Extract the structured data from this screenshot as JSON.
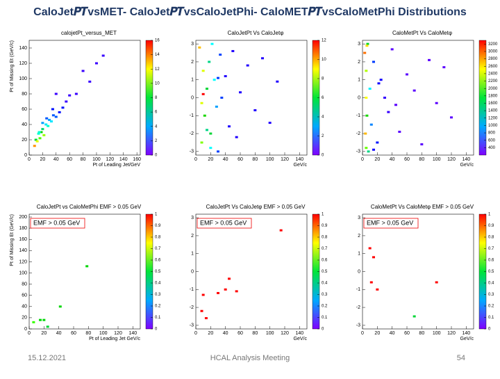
{
  "title": "CaloJet𝑷𝑻vsMET- CaloJet𝑷𝑻vsCaloJetPhi- CaloMET𝑷𝑻vsCaloMetPhi Distributions",
  "footer": {
    "date": "15.12.2021",
    "event": "HCAL Analysis Meeting",
    "page": "54"
  },
  "chart_data": [
    {
      "type": "hist2d",
      "title": "calojetPt_versus_MET",
      "xlabel": "Pt of Leading Jet/GeV",
      "ylabel": "Pt of Missing Et (GeV/c)",
      "x": [
        8,
        10,
        12,
        14,
        16,
        18,
        20,
        22,
        25,
        28,
        30,
        33,
        36,
        40,
        45,
        50,
        55,
        60,
        70,
        80,
        90,
        100,
        110,
        40,
        35,
        26,
        20,
        15
      ],
      "y": [
        12,
        20,
        18,
        28,
        22,
        30,
        34,
        26,
        40,
        38,
        46,
        44,
        52,
        50,
        56,
        62,
        70,
        78,
        80,
        110,
        96,
        120,
        130,
        80,
        60,
        48,
        42,
        30
      ],
      "z": [
        14,
        8,
        12,
        6,
        10,
        9,
        7,
        11,
        5,
        6,
        4,
        5,
        3,
        3,
        2,
        2,
        1,
        1,
        1,
        1,
        1,
        1,
        1,
        1,
        2,
        3,
        4,
        6
      ],
      "xlim": [
        0,
        165
      ],
      "ylim": [
        0,
        150
      ],
      "xticks": [
        0,
        20,
        40,
        60,
        80,
        100,
        120,
        140,
        160
      ],
      "yticks": [
        0,
        20,
        40,
        60,
        80,
        100,
        120,
        140
      ],
      "zlim": [
        0,
        16
      ],
      "zticks": [
        0,
        2,
        4,
        6,
        8,
        10,
        12,
        14,
        16
      ]
    },
    {
      "type": "hist2d",
      "title": "CaloJetPt Vs CaloJetφ",
      "xlabel": "GeV/c",
      "x": [
        5,
        8,
        10,
        12,
        15,
        18,
        20,
        22,
        25,
        28,
        30,
        33,
        35,
        40,
        45,
        50,
        55,
        60,
        70,
        80,
        90,
        100,
        110,
        20,
        15,
        10,
        30,
        8
      ],
      "y": [
        2.8,
        -2.5,
        1.5,
        -1,
        0.5,
        2,
        -2,
        3,
        1,
        -0.5,
        -3,
        2.4,
        0,
        1.2,
        -1.6,
        2.6,
        -2.2,
        0.3,
        1.8,
        -0.7,
        2.2,
        -1.4,
        0.9,
        -2.8,
        -1.8,
        0.2,
        1.1,
        -0.3
      ],
      "z": [
        10,
        8,
        9,
        7,
        6,
        5,
        6,
        4,
        4,
        3,
        2,
        2,
        2,
        1,
        1,
        1,
        1,
        1,
        1,
        1,
        1,
        1,
        1,
        4,
        5,
        12,
        2,
        9
      ],
      "xlim": [
        0,
        150
      ],
      "ylim": [
        -3.2,
        3.2
      ],
      "xticks": [
        0,
        20,
        40,
        60,
        80,
        100,
        120,
        140
      ],
      "yticks": [
        -3,
        -2,
        -1,
        0,
        1,
        2,
        3
      ],
      "zlim": [
        0,
        12
      ],
      "zticks": [
        0,
        2,
        4,
        6,
        8,
        10,
        12
      ]
    },
    {
      "type": "hist2d",
      "title": "CaloMetPt Vs CaloMetφ",
      "xlabel": "GeV/c",
      "x": [
        3,
        4,
        5,
        5,
        6,
        7,
        8,
        10,
        12,
        15,
        20,
        25,
        30,
        35,
        40,
        50,
        60,
        70,
        80,
        90,
        100,
        110,
        120,
        15,
        22,
        45,
        5,
        6
      ],
      "y": [
        2.5,
        -2,
        0,
        1.5,
        -1,
        3,
        -3,
        0.5,
        -1.5,
        2,
        -2.5,
        1,
        0,
        -0.8,
        2.7,
        -1.9,
        1.3,
        0.4,
        -2.6,
        2.1,
        -0.3,
        1.7,
        -1.1,
        -2.9,
        0.8,
        -0.4,
        -2.8,
        2.9
      ],
      "z": [
        3000,
        2800,
        2600,
        2400,
        2000,
        1800,
        1500,
        1200,
        900,
        700,
        600,
        500,
        400,
        400,
        300,
        300,
        300,
        300,
        300,
        300,
        300,
        300,
        300,
        500,
        500,
        300,
        2200,
        2700
      ],
      "xlim": [
        0,
        150
      ],
      "ylim": [
        -3.2,
        3.2
      ],
      "xticks": [
        0,
        20,
        40,
        60,
        80,
        100,
        120,
        140
      ],
      "yticks": [
        -3,
        -2,
        -1,
        0,
        1,
        2,
        3
      ],
      "zlim": [
        200,
        3300
      ],
      "zticks": [
        400,
        600,
        800,
        1000,
        1200,
        1400,
        1600,
        1800,
        2000,
        2200,
        2400,
        2600,
        2800,
        3000,
        3200
      ]
    },
    {
      "type": "hist2d",
      "title": "CaloJetPt vs CaloMetPhi EMF > 0.05 GeV",
      "note": "EMF > 0.05 GeV",
      "xlabel": "Pt of Leading Jet GeV/c",
      "ylabel": "Pt of Missing Et (GeV/c)",
      "x": [
        6,
        15,
        20,
        25,
        42,
        78
      ],
      "y": [
        12,
        16,
        16,
        4,
        40,
        112
      ],
      "z": [
        0.6,
        0.55,
        0.55,
        0.5,
        0.55,
        0.55
      ],
      "xlim": [
        0,
        150
      ],
      "ylim": [
        0,
        205
      ],
      "xticks": [
        0,
        20,
        40,
        60,
        80,
        100,
        120,
        140
      ],
      "yticks": [
        0,
        20,
        40,
        60,
        80,
        100,
        120,
        140,
        160,
        180,
        200
      ],
      "zlim": [
        0,
        1
      ],
      "zticks": [
        0,
        0.1,
        0.2,
        0.3,
        0.4,
        0.5,
        0.6,
        0.7,
        0.8,
        0.9,
        1
      ]
    },
    {
      "type": "hist2d",
      "title": "CaloJetPt Vs CaloJetφ EMF > 0.05 GeV",
      "note": "EMF > 0.05 GeV",
      "xlabel": "GeV/c",
      "x": [
        8,
        10,
        14,
        30,
        40,
        45,
        55,
        115
      ],
      "y": [
        -2.2,
        -1.3,
        -2.6,
        -1.2,
        -1.0,
        -0.4,
        -1.1,
        2.3
      ],
      "z": [
        1,
        1,
        1,
        1,
        1,
        1,
        1,
        1
      ],
      "xlim": [
        0,
        150
      ],
      "ylim": [
        -3.2,
        3.2
      ],
      "xticks": [
        0,
        20,
        40,
        60,
        80,
        100,
        120,
        140
      ],
      "yticks": [
        -3,
        -2,
        -1,
        0,
        1,
        2,
        3
      ],
      "zlim": [
        0,
        1
      ],
      "zticks": [
        0,
        0.1,
        0.2,
        0.3,
        0.4,
        0.5,
        0.6,
        0.7,
        0.8,
        0.9,
        1
      ]
    },
    {
      "type": "hist2d",
      "title": "CaloMetPt Vs CaloMetφ EMF > 0.05 GeV",
      "note": "EMF > 0.05 GeV",
      "xlabel": "GeV/c",
      "x": [
        10,
        15,
        12,
        20,
        100,
        70
      ],
      "y": [
        1.3,
        0.8,
        -0.6,
        -1.0,
        -0.6,
        -2.5
      ],
      "z": [
        1,
        1,
        1,
        1,
        1,
        0.5
      ],
      "xlim": [
        0,
        150
      ],
      "ylim": [
        -3.2,
        3.2
      ],
      "xticks": [
        0,
        20,
        40,
        60,
        80,
        100,
        120,
        140
      ],
      "yticks": [
        -3,
        -2,
        -1,
        0,
        1,
        2,
        3
      ],
      "zlim": [
        0,
        1
      ],
      "zticks": [
        0,
        0.1,
        0.2,
        0.3,
        0.4,
        0.5,
        0.6,
        0.7,
        0.8,
        0.9,
        1
      ]
    }
  ]
}
